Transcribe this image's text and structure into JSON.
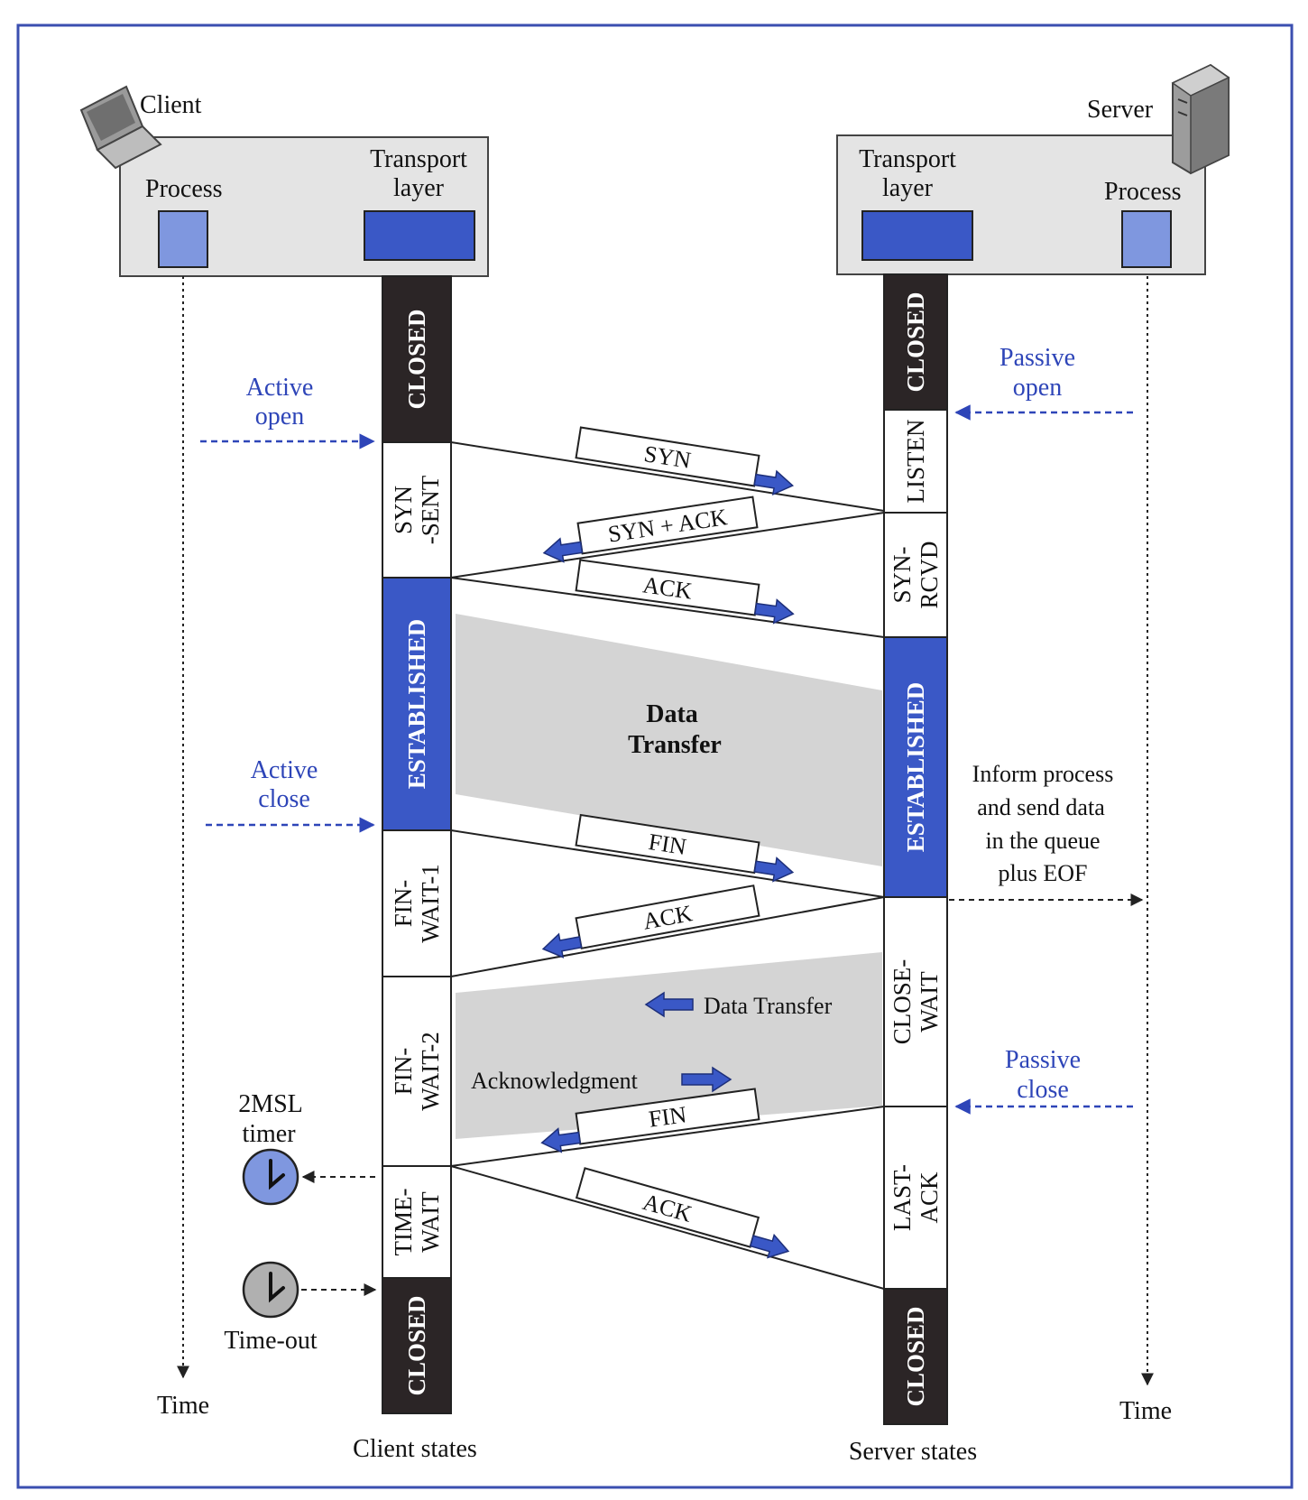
{
  "client": {
    "label": "Client",
    "process_label": "Process",
    "transport_label_1": "Transport",
    "transport_label_2": "layer",
    "time_label": "Time",
    "states_caption": "Client states",
    "states": [
      "CLOSED",
      "SYN-SENT",
      "ESTABLISHED",
      "FIN-WAIT-1",
      "FIN-WAIT-2",
      "TIME-WAIT",
      "CLOSED"
    ],
    "state_lines": [
      [
        "CLOSED"
      ],
      [
        "SYN",
        "-SENT"
      ],
      [
        "ESTABLISHED"
      ],
      [
        "FIN-",
        "WAIT-1"
      ],
      [
        "FIN-",
        "WAIT-2"
      ],
      [
        "TIME-",
        "WAIT"
      ],
      [
        "CLOSED"
      ]
    ]
  },
  "server": {
    "label": "Server",
    "process_label": "Process",
    "transport_label_1": "Transport",
    "transport_label_2": "layer",
    "time_label": "Time",
    "states_caption": "Server states",
    "states": [
      "CLOSED",
      "LISTEN",
      "SYN-RCVD",
      "ESTABLISHED",
      "CLOSE-WAIT",
      "LAST-ACK",
      "CLOSED"
    ],
    "state_lines": [
      [
        "CLOSED"
      ],
      [
        "LISTEN"
      ],
      [
        "SYN-",
        "RCVD"
      ],
      [
        "ESTABLISHED"
      ],
      [
        "CLOSE-",
        "WAIT"
      ],
      [
        "LAST-",
        "ACK"
      ],
      [
        "CLOSED"
      ]
    ]
  },
  "segments": [
    "SYN",
    "SYN + ACK",
    "ACK",
    "FIN",
    "ACK",
    "FIN",
    "ACK"
  ],
  "annotations": {
    "active_open_1": "Active",
    "active_open_2": "open",
    "passive_open_1": "Passive",
    "passive_open_2": "open",
    "active_close_1": "Active",
    "active_close_2": "close",
    "passive_close_1": "Passive",
    "passive_close_2": "close",
    "data_transfer_1": "Data",
    "data_transfer_2": "Transfer",
    "inform_1": "Inform process",
    "inform_2": "and send data",
    "inform_3": "in the queue",
    "inform_4": "plus EOF",
    "half_close_data": "Data Transfer",
    "half_close_ack": "Acknowledgment",
    "timer_1": "2MSL",
    "timer_2": "timer",
    "timeout": "Time-out"
  },
  "colors": {
    "frame": "#3b4fb0",
    "blue_annotation": "#2e45b8",
    "established": "#3a58c6",
    "closed": "#2b2526",
    "process_box": "#7f97df",
    "transport_box": "#3a58c6",
    "arrow_blue": "#3a58c6",
    "shade": "#d4d4d4",
    "timer_blue": "#7f97df",
    "timer_gray": "#b0b0b0"
  },
  "icons": {
    "client": "laptop-icon",
    "server": "server-tower-icon",
    "timer": "clock-icon",
    "timeout": "clock-icon"
  }
}
